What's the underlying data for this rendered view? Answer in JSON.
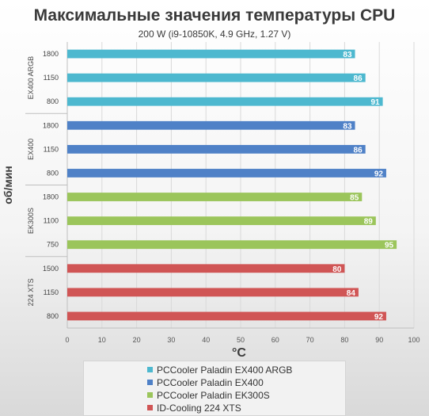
{
  "chart_data": {
    "type": "bar",
    "orientation": "horizontal",
    "title": "Максимальные значения температуры CPU",
    "subtitle": "200 W (i9-10850K, 4.9 GHz, 1.27 V)",
    "xlabel": "°C",
    "ylabel": "об/мин",
    "xlim": [
      0,
      100
    ],
    "xticks": [
      "0",
      "10",
      "20",
      "30",
      "40",
      "50",
      "60",
      "70",
      "80",
      "90",
      "100"
    ],
    "grid": "vertical",
    "legend_position": "bottom",
    "groups": [
      {
        "label": "EX400 ARGB",
        "series": "PCCooler Paladin EX400 ARGB",
        "color": "#4db8cf",
        "rows": [
          {
            "rpm": "1800",
            "value": 83
          },
          {
            "rpm": "1150",
            "value": 86
          },
          {
            "rpm": "800",
            "value": 91
          }
        ]
      },
      {
        "label": "EX400",
        "series": "PCCooler Paladin EX400",
        "color": "#4f81c7",
        "rows": [
          {
            "rpm": "1800",
            "value": 83
          },
          {
            "rpm": "1150",
            "value": 86
          },
          {
            "rpm": "800",
            "value": 92
          }
        ]
      },
      {
        "label": "EK300S",
        "series": "PCCooler Paladin EK300S",
        "color": "#9bc55b",
        "rows": [
          {
            "rpm": "1800",
            "value": 85
          },
          {
            "rpm": "1100",
            "value": 89
          },
          {
            "rpm": "750",
            "value": 95
          }
        ]
      },
      {
        "label": "224 XTS",
        "series": "ID-Cooling 224 XTS",
        "color": "#d05555",
        "rows": [
          {
            "rpm": "1500",
            "value": 80
          },
          {
            "rpm": "1150",
            "value": 84
          },
          {
            "rpm": "800",
            "value": 92
          }
        ]
      }
    ],
    "legend": [
      {
        "name": "PCCooler Paladin EX400 ARGB",
        "color": "#4db8cf"
      },
      {
        "name": "PCCooler Paladin EX400",
        "color": "#4f81c7"
      },
      {
        "name": "PCCooler Paladin EK300S",
        "color": "#9bc55b"
      },
      {
        "name": "ID-Cooling 224 XTS",
        "color": "#d05555"
      }
    ]
  }
}
